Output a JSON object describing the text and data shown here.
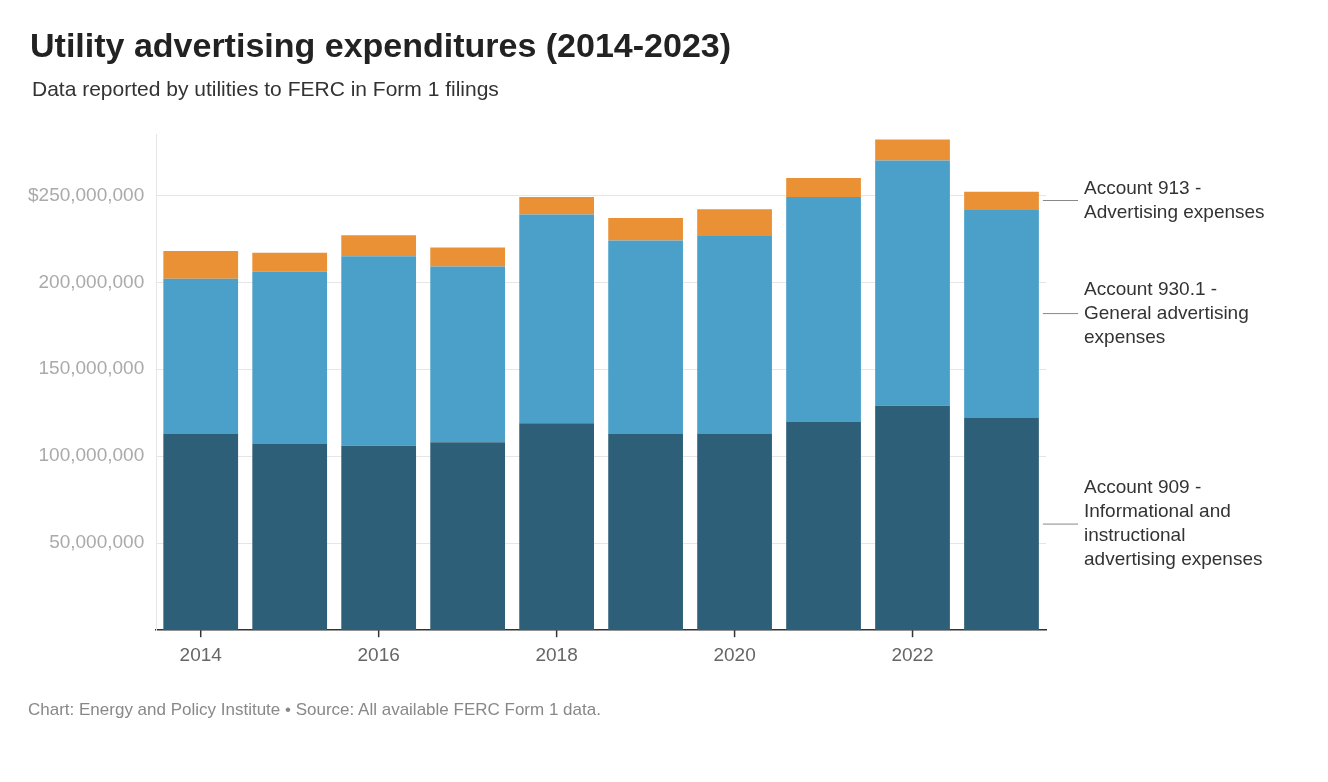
{
  "chart_data": {
    "type": "bar",
    "title": "Utility advertising expenditures (2014-2023)",
    "subtitle": "Data reported by utilities to FERC in Form 1 filings",
    "categories": [
      "2014",
      null,
      "2016",
      null,
      "2018",
      null,
      "2020",
      null,
      "2022",
      null
    ],
    "stacked": true,
    "series": [
      {
        "name": "Account 909 - Informational and instructional advertising expenses",
        "color": "#2e5f78",
        "values": [
          113000000,
          107000000,
          106000000,
          108000000,
          119000000,
          113000000,
          113000000,
          120000000,
          129000000,
          122000000
        ]
      },
      {
        "name": "Account 930.1 - General advertising expenses",
        "color": "#4ba0c9",
        "values": [
          89000000,
          99000000,
          109000000,
          101000000,
          120000000,
          111000000,
          114000000,
          129000000,
          141000000,
          120000000
        ]
      },
      {
        "name": "Account 913 - Advertising expenses",
        "color": "#ea9136",
        "values": [
          16000000,
          11000000,
          12000000,
          11000000,
          10000000,
          13000000,
          15000000,
          11000000,
          12000000,
          10000000
        ]
      }
    ],
    "ylim": [
      0,
      285000000
    ],
    "yticks": [
      {
        "value": 50000000,
        "label": "50,000,000"
      },
      {
        "value": 100000000,
        "label": "100,000,000"
      },
      {
        "value": 150000000,
        "label": "150,000,000"
      },
      {
        "value": 200000000,
        "label": "200,000,000"
      },
      {
        "value": 250000000,
        "label": "$250,000,000"
      }
    ],
    "grid": "y",
    "legend": "right",
    "annotations": [
      "Chart: Energy and Policy Institute • Source: All available FERC Form 1 data."
    ]
  }
}
